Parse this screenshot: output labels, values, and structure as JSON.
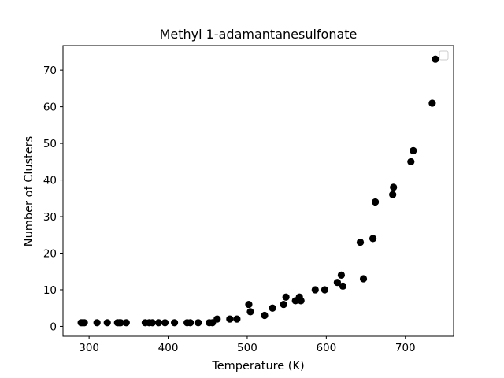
{
  "chart_data": {
    "type": "scatter",
    "title": "Methyl 1-adamantanesulfonate",
    "xlabel": "Temperature (K)",
    "ylabel": "Number of Clusters",
    "xlim": [
      267,
      761
    ],
    "ylim": [
      -2.7,
      76.7
    ],
    "xticks": [
      300,
      400,
      500,
      600,
      700
    ],
    "yticks": [
      0,
      10,
      20,
      30,
      40,
      50,
      60,
      70
    ],
    "grid": false,
    "legend": "top-right",
    "marker_color": "#000000",
    "points": [
      [
        290,
        1
      ],
      [
        292,
        1
      ],
      [
        294,
        1
      ],
      [
        310,
        1
      ],
      [
        323,
        1
      ],
      [
        336,
        1
      ],
      [
        338,
        1
      ],
      [
        340,
        1
      ],
      [
        347,
        1
      ],
      [
        371,
        1
      ],
      [
        376,
        1
      ],
      [
        380,
        1
      ],
      [
        388,
        1
      ],
      [
        396,
        1
      ],
      [
        408,
        1
      ],
      [
        424,
        1
      ],
      [
        428,
        1
      ],
      [
        438,
        1
      ],
      [
        452,
        1
      ],
      [
        456,
        1
      ],
      [
        462,
        2
      ],
      [
        478,
        2
      ],
      [
        487,
        2
      ],
      [
        502,
        6
      ],
      [
        504,
        4
      ],
      [
        522,
        3
      ],
      [
        532,
        5
      ],
      [
        546,
        6
      ],
      [
        549,
        8
      ],
      [
        561,
        7
      ],
      [
        566,
        8
      ],
      [
        568,
        7
      ],
      [
        586,
        10
      ],
      [
        598,
        10
      ],
      [
        614,
        12
      ],
      [
        619,
        14
      ],
      [
        621,
        11
      ],
      [
        643,
        23
      ],
      [
        647,
        13
      ],
      [
        659,
        24
      ],
      [
        662,
        34
      ],
      [
        684,
        36
      ],
      [
        685,
        38
      ],
      [
        707,
        45
      ],
      [
        710,
        48
      ],
      [
        734,
        61
      ],
      [
        738,
        73
      ]
    ]
  }
}
